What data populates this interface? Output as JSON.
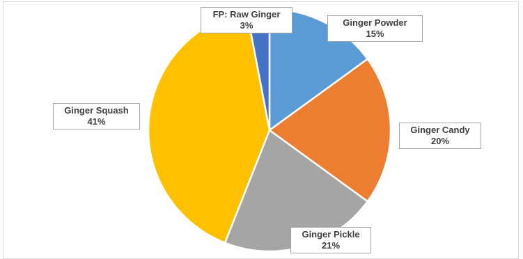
{
  "chart_data": {
    "type": "pie",
    "slices": [
      {
        "label": "Ginger Powder",
        "value": 15,
        "display": "15%",
        "color": "#5b9bd5"
      },
      {
        "label": "Ginger Candy",
        "value": 20,
        "display": "20%",
        "color": "#ed7d31"
      },
      {
        "label": "Ginger Pickle",
        "value": 21,
        "display": "21%",
        "color": "#a5a5a5"
      },
      {
        "label": "Ginger Squash",
        "value": 41,
        "display": "41%",
        "color": "#ffc000"
      },
      {
        "label": "FP: Raw Ginger",
        "value": 3,
        "display": "3%",
        "color": "#4472c4"
      }
    ],
    "start_angle_deg": 0,
    "direction": "clockwise",
    "slice_border_color": "#ffffff",
    "label_style": "callout-boxes"
  }
}
